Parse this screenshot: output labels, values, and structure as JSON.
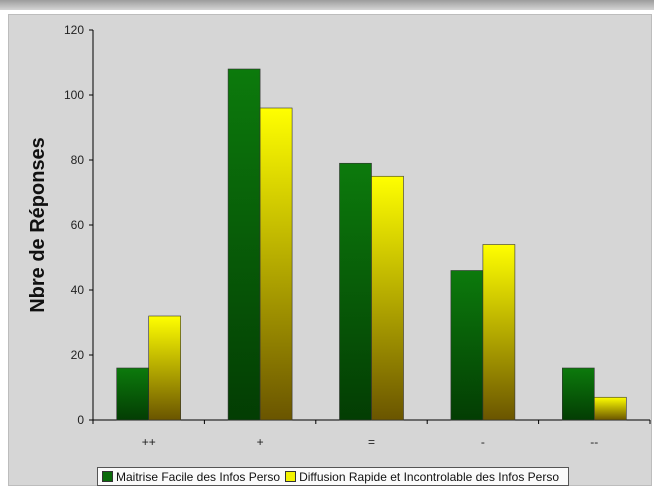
{
  "chart_data": {
    "type": "bar",
    "title": "",
    "xlabel": "",
    "ylabel": "Nbre de Réponses",
    "categories": [
      "++",
      "+",
      "=",
      "-",
      "--"
    ],
    "ylim": [
      0,
      120
    ],
    "yticks": [
      0,
      20,
      40,
      60,
      80,
      100,
      120
    ],
    "grid": false,
    "legend_position": "bottom",
    "series": [
      {
        "name": "Maitrise Facile des Infos Perso",
        "values": [
          16,
          108,
          79,
          46,
          16
        ],
        "color": "#0a6a0a"
      },
      {
        "name": "Diffusion Rapide et Incontrolable des Infos Perso",
        "values": [
          32,
          96,
          75,
          54,
          7
        ],
        "color": "#f2f200"
      }
    ]
  }
}
